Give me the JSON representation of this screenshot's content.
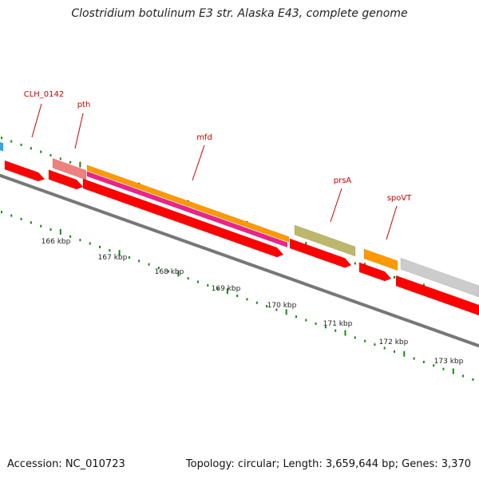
{
  "title": "Clostridium botulinum E3 str. Alaska E43, complete genome",
  "accession_text": "Accession: NC_010723",
  "info_text": "Topology: circular; Length: 3,659,644 bp; Genes: 3,370",
  "gene_labels": [
    "CLH_0142",
    "pth",
    "mfd",
    "prsA",
    "spoVT"
  ],
  "kbp_labels": [
    "166 kbp",
    "167 kbp",
    "168 kbp",
    "169 kbp",
    "170 kbp",
    "171 kbp",
    "172 kbp",
    "173 kbp"
  ],
  "colors": {
    "cds": "#ff0000",
    "pth": "#f08080",
    "mfd_orange": "#ff9900",
    "mfd_pink": "#ee2288",
    "prsA": "#bdb76b",
    "spoVT": "#ff9900",
    "next_gene": "#cccccc",
    "backbone": "#777777",
    "ticks": "#118811",
    "left_gene": "#33aadd"
  }
}
